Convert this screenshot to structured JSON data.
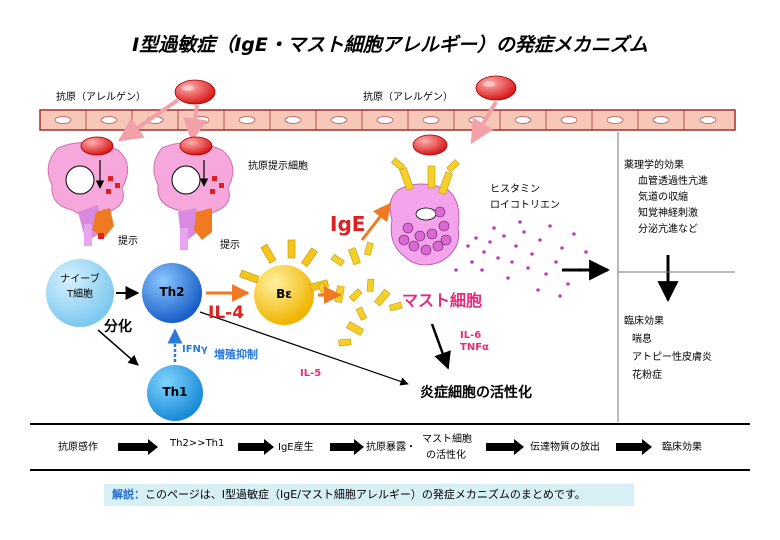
{
  "title": "I型過敏症（IgE・マスト細胞アレルギー）の発症メカニズム",
  "labels": {
    "allergen_left": "抗原（アレルゲン）",
    "allergen_right": "抗原（アレルゲン）",
    "apc": "抗原提示細胞",
    "present1": "提示",
    "present2": "提示",
    "naive": "ナイーブ\nT細胞",
    "naive_line1": "ナイーブ",
    "naive_line2": "T細胞",
    "th2": "Th2",
    "th1": "Th1",
    "b_cell": "Bε",
    "differentiation": "分化",
    "il4": "IL-4",
    "ifn": "IFNγ",
    "proliferation_inhibition": "増殖抑制",
    "il5": "IL-5",
    "ige": "IgE",
    "mast_cell": "マスト細胞",
    "histamine": "ヒスタミン",
    "leukotriene": "ロイコトリエン",
    "il6": "IL-6",
    "tnf": "TNFα",
    "inflammation": "炎症細胞の活性化"
  },
  "pharmacological": {
    "heading": "薬理学的効果",
    "items": [
      "血管透過性亢進",
      "気道の収縮",
      "知覚神経刺激",
      "分泌亢進など"
    ]
  },
  "clinical": {
    "heading": "臨床効果",
    "items": [
      "喘息",
      "アトピー性皮膚炎",
      "花粉症"
    ]
  },
  "flow": [
    "抗原感作",
    "Th2>>Th1",
    "IgE産生",
    "抗原暴露・",
    "マスト細胞",
    "の活性化",
    "伝達物質の放出",
    "臨床効果"
  ],
  "note": {
    "key": "解説：",
    "text": "このページは、I型過敏症（IgE/マスト細胞アレルギー）の発症メカニズムのまとめです。"
  },
  "colors": {
    "pink": "#e8287a",
    "blue": "#2a7ad8",
    "red": "#e02020",
    "allergen": "#e02828",
    "th": "#2a7ad8",
    "naive": "#8fd3f4",
    "b": "#f5c518",
    "apc": "#f4a6d8",
    "epithelium": "#f6c6b6"
  }
}
